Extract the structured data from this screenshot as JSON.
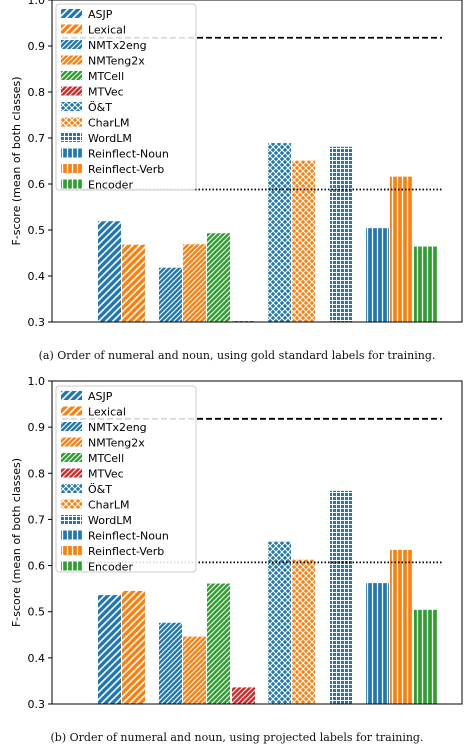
{
  "legend_labels": [
    "ASJP",
    "Lexical",
    "NMTx2eng",
    "NMTeng2x",
    "MTCell",
    "MTVec",
    "Ö&T",
    "CharLM",
    "WordLM",
    "Reinflect-Noun",
    "Reinflect-Verb",
    "Encoder"
  ],
  "colors": {
    "blue": "#1f77b4",
    "orange": "#ff7f0e",
    "green": "#2ca02c",
    "red": "#d62728"
  },
  "chart_data": [
    {
      "type": "bar",
      "caption": "(a) Order of numeral and noun, using gold standard labels for training.",
      "ylabel": "F-score (mean of both classes)",
      "ylim": [
        0.3,
        1.0
      ],
      "yticks": [
        "0.3",
        "0.4",
        "0.5",
        "0.6",
        "0.7",
        "0.8",
        "0.9",
        "1.0"
      ],
      "legend_position": "upper-left",
      "reference_lines": [
        {
          "style": "dashed",
          "value": 0.918
        },
        {
          "style": "dotted",
          "value": 0.588
        }
      ],
      "series": [
        {
          "name": "ASJP",
          "value": 0.519,
          "color": "#1f77b4",
          "hatch": "diag"
        },
        {
          "name": "Lexical",
          "value": 0.468,
          "color": "#ff7f0e",
          "hatch": "diag"
        },
        {
          "name": "NMTx2eng",
          "value": 0.418,
          "color": "#1f77b4",
          "hatch": "diagdense"
        },
        {
          "name": "NMTeng2x",
          "value": 0.469,
          "color": "#ff7f0e",
          "hatch": "diagdense"
        },
        {
          "name": "MTCell",
          "value": 0.493,
          "color": "#2ca02c",
          "hatch": "diagdense"
        },
        {
          "name": "MTVec",
          "value": 0.302,
          "color": "#d62728",
          "hatch": "diagdense"
        },
        {
          "name": "Ö&T",
          "value": 0.689,
          "color": "#1f77b4",
          "hatch": "cross"
        },
        {
          "name": "CharLM",
          "value": 0.651,
          "color": "#ff7f0e",
          "hatch": "cross"
        },
        {
          "name": "WordLM",
          "value": 0.681,
          "color": "#1f77b4",
          "hatch": "grid"
        },
        {
          "name": "Reinflect-Noun",
          "value": 0.504,
          "color": "#1f77b4",
          "hatch": "vert"
        },
        {
          "name": "Reinflect-Verb",
          "value": 0.616,
          "color": "#ff7f0e",
          "hatch": "vert"
        },
        {
          "name": "Encoder",
          "value": 0.464,
          "color": "#2ca02c",
          "hatch": "vert"
        }
      ]
    },
    {
      "type": "bar",
      "caption": "(b) Order of numeral and noun, using projected labels for training.",
      "ylabel": "F-score (mean of both classes)",
      "ylim": [
        0.3,
        1.0
      ],
      "yticks": [
        "0.3",
        "0.4",
        "0.5",
        "0.6",
        "0.7",
        "0.8",
        "0.9",
        "1.0"
      ],
      "legend_position": "upper-left",
      "reference_lines": [
        {
          "style": "dashed",
          "value": 0.918
        },
        {
          "style": "dotted",
          "value": 0.607
        }
      ],
      "series": [
        {
          "name": "ASJP",
          "value": 0.536,
          "color": "#1f77b4",
          "hatch": "diag"
        },
        {
          "name": "Lexical",
          "value": 0.545,
          "color": "#ff7f0e",
          "hatch": "diag"
        },
        {
          "name": "NMTx2eng",
          "value": 0.476,
          "color": "#1f77b4",
          "hatch": "diagdense"
        },
        {
          "name": "NMTeng2x",
          "value": 0.446,
          "color": "#ff7f0e",
          "hatch": "diagdense"
        },
        {
          "name": "MTCell",
          "value": 0.561,
          "color": "#2ca02c",
          "hatch": "diagdense"
        },
        {
          "name": "MTVec",
          "value": 0.336,
          "color": "#d62728",
          "hatch": "diagdense"
        },
        {
          "name": "Ö&T",
          "value": 0.652,
          "color": "#1f77b4",
          "hatch": "cross"
        },
        {
          "name": "CharLM",
          "value": 0.613,
          "color": "#ff7f0e",
          "hatch": "cross"
        },
        {
          "name": "WordLM",
          "value": 0.762,
          "color": "#1f77b4",
          "hatch": "grid"
        },
        {
          "name": "Reinflect-Noun",
          "value": 0.562,
          "color": "#1f77b4",
          "hatch": "vert"
        },
        {
          "name": "Reinflect-Verb",
          "value": 0.634,
          "color": "#ff7f0e",
          "hatch": "vert"
        },
        {
          "name": "Encoder",
          "value": 0.504,
          "color": "#2ca02c",
          "hatch": "vert"
        }
      ]
    }
  ]
}
